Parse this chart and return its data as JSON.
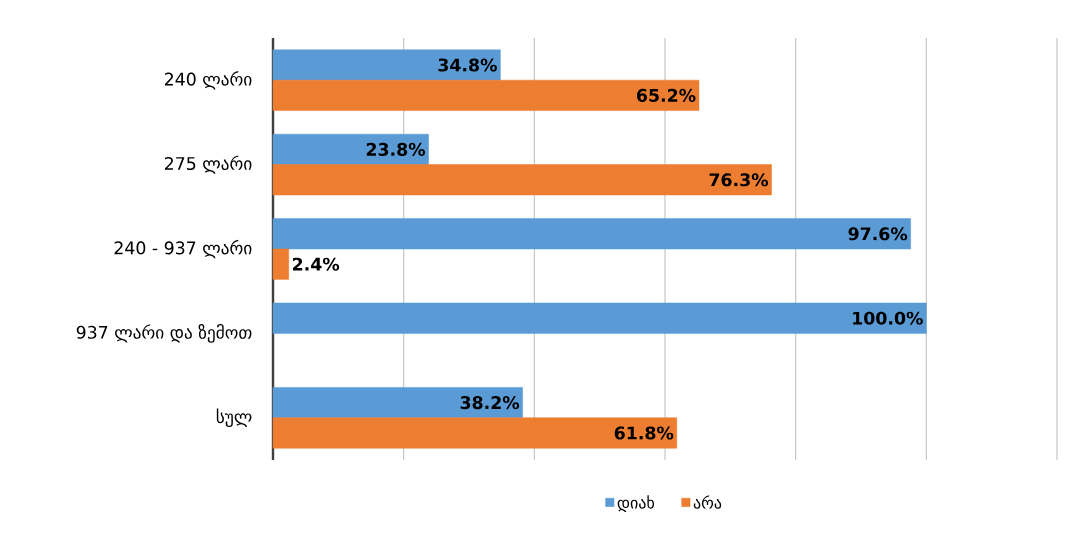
{
  "chart_data": {
    "type": "bar",
    "orientation": "horizontal",
    "categories": [
      "240 ლარი",
      "275 ლარი",
      "240 - 937 ლარი",
      "937 ლარი და ზემოთ",
      "სულ"
    ],
    "series": [
      {
        "name": "დიახ",
        "color": "#5b9bd5",
        "values": [
          34.8,
          23.8,
          97.6,
          100.0,
          38.2
        ],
        "value_labels": [
          "34.8%",
          "23.8%",
          "97.6%",
          "100.0%",
          "38.2%"
        ]
      },
      {
        "name": "არა",
        "color": "#ed7d31",
        "values": [
          65.2,
          76.3,
          2.4,
          null,
          61.8
        ],
        "value_labels": [
          "65.2%",
          "76.3%",
          "2.4%",
          null,
          "61.8%"
        ]
      }
    ],
    "xlim": [
      0,
      120
    ],
    "xticks": [
      {
        "value": 0,
        "label": null
      },
      {
        "value": 20,
        "label": null
      },
      {
        "value": 40,
        "label": null
      },
      {
        "value": 60,
        "label": null
      },
      {
        "value": 80,
        "label": null
      },
      {
        "value": 100,
        "label": null
      },
      {
        "value": 120,
        "label": null
      }
    ],
    "tick_labels": "y",
    "grid": "x",
    "legend": "bottom"
  }
}
